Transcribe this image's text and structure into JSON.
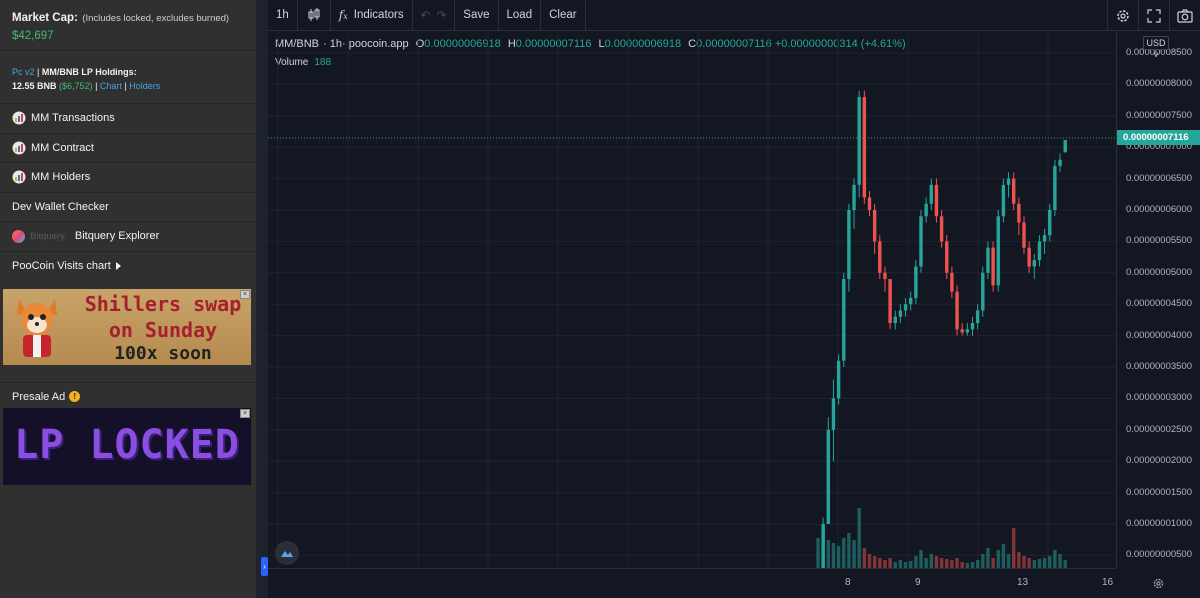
{
  "sidebar": {
    "market_cap": {
      "title": "Market Cap:",
      "note": "(Includes locked, excludes burned)",
      "value": "$42,697"
    },
    "lp": {
      "version_link": "Pc v2",
      "sep1": " | ",
      "title": "MM/BNB LP Holdings:",
      "bnb": "12.55 BNB",
      "usd": "($6,752)",
      "sep2": " | ",
      "chart_link": "Chart",
      "sep3": " | ",
      "holders_link": "Holders"
    },
    "items": [
      {
        "label": "MM Transactions",
        "icon": "token-icon"
      },
      {
        "label": "MM Contract",
        "icon": "token-icon"
      },
      {
        "label": "MM Holders",
        "icon": "token-icon"
      },
      {
        "label": "Dev Wallet Checker",
        "icon": ""
      },
      {
        "label": "Bitquery Explorer",
        "icon": "bitquery-icon",
        "brand": "Bitquery"
      },
      {
        "label": "PooCoin Visits chart",
        "icon": "caret-right-icon"
      }
    ],
    "ad_banner_1": {
      "line1": "Shillers swap",
      "line2": "on Sunday",
      "line3": "100x soon"
    },
    "presale": {
      "label": "Presale Ad",
      "badge": "!"
    },
    "ad_banner_2": {
      "text": "LP LOCKED"
    }
  },
  "toolbar": {
    "interval": "1h",
    "indicators": "Indicators",
    "save": "Save",
    "load": "Load",
    "clear": "Clear"
  },
  "legend": {
    "symbol": "MM/BNB",
    "interval": "1h",
    "source": "poocoin.app",
    "o_label": "O",
    "o": "0.00000006918",
    "h_label": "H",
    "h": "0.00000007116",
    "l_label": "L",
    "l": "0.00000006918",
    "c_label": "C",
    "c": "0.00000007116",
    "change": "+0.00000000314 (+4.61%)",
    "volume_label": "Volume",
    "volume": "188"
  },
  "price_scale": {
    "currency": "USD",
    "last_price": "0.00000007116",
    "ticks": [
      "0.00000008500",
      "0.00000008000",
      "0.00000007500",
      "0.00000007000",
      "0.00000006500",
      "0.00000006000",
      "0.00000005500",
      "0.00000005000",
      "0.00000004500",
      "0.00000004000",
      "0.00000003500",
      "0.00000003000",
      "0.00000002500",
      "0.00000002000",
      "0.00000001500",
      "0.00000001000",
      "0.00000000500"
    ]
  },
  "time_axis": {
    "labels": [
      "8",
      "9",
      "13",
      "16"
    ]
  },
  "colors": {
    "up": "#26a69a",
    "down": "#ef5350",
    "background": "#131722",
    "grid": "#1f2330"
  }
}
